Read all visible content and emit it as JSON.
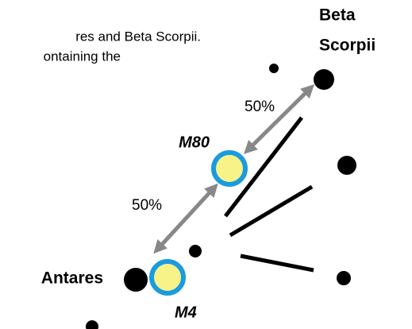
{
  "caption": [
    "res and Beta Scorpii.",
    "ontaining the"
  ],
  "labels": {
    "beta_scorpii": [
      "Beta",
      "Scorpii"
    ],
    "antares": "Antares",
    "m80": "M80",
    "m4": "M4",
    "upper_percent": "50%",
    "lower_percent": "50%"
  }
}
